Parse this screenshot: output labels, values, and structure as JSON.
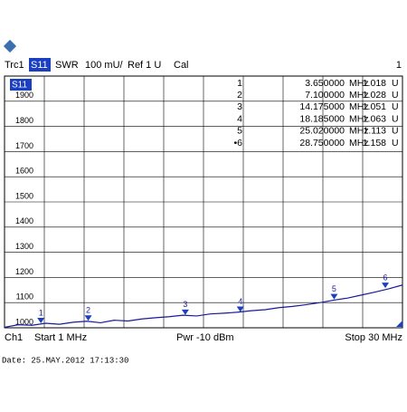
{
  "header": {
    "trace": "Trc1",
    "param": "S11",
    "format": "SWR",
    "scale": "100 mU/",
    "ref": "Ref 1 U",
    "cal": "Cal",
    "channel_no": "1"
  },
  "chart_data": {
    "type": "line",
    "trace_label": "S11",
    "color": "#1a1a9a",
    "x": [
      1,
      2,
      3,
      4,
      5,
      6,
      7,
      8,
      9,
      10,
      11,
      12,
      13,
      14,
      15,
      16,
      17,
      18,
      19,
      20,
      21,
      22,
      23,
      24,
      25,
      26,
      27,
      28,
      29,
      30
    ],
    "values": [
      1002,
      1012,
      1010,
      1018,
      1014,
      1022,
      1026,
      1020,
      1030,
      1027,
      1035,
      1040,
      1044,
      1050,
      1047,
      1055,
      1058,
      1062,
      1068,
      1072,
      1080,
      1085,
      1092,
      1100,
      1110,
      1118,
      1130,
      1142,
      1155,
      1170
    ],
    "xlim": [
      1,
      30
    ],
    "ylim": [
      1000,
      2000
    ],
    "yticks": [
      1000,
      1100,
      1200,
      1300,
      1400,
      1500,
      1600,
      1700,
      1800,
      1900
    ],
    "markers": [
      {
        "label": "1",
        "x": 3.65,
        "y": 1018
      },
      {
        "label": "2",
        "x": 7.1,
        "y": 1028
      },
      {
        "label": "3",
        "x": 14.175,
        "y": 1051
      },
      {
        "label": "4",
        "x": 18.185,
        "y": 1063
      },
      {
        "label": "5",
        "x": 25.02,
        "y": 1113
      },
      {
        "label": "6",
        "x": 28.75,
        "y": 1158
      }
    ],
    "marker_table": [
      [
        "1",
        "3.650000",
        "MHz",
        "1.018",
        "U"
      ],
      [
        "2",
        "7.100000",
        "MHz",
        "1.028",
        "U"
      ],
      [
        "3",
        "14.175000",
        "MHz",
        "1.051",
        "U"
      ],
      [
        "4",
        "18.185000",
        "MHz",
        "1.063",
        "U"
      ],
      [
        "5",
        "25.020000",
        "MHz",
        "1.113",
        "U"
      ],
      [
        "•6",
        "28.750000",
        "MHz",
        "1.158",
        "U"
      ]
    ]
  },
  "footer": {
    "channel": "Ch1",
    "start": "Start 1 MHz",
    "power": "Pwr -10 dBm",
    "stop": "Stop 30 MHz"
  },
  "timestamp": "Date: 25.MAY.2012  17:13:30"
}
